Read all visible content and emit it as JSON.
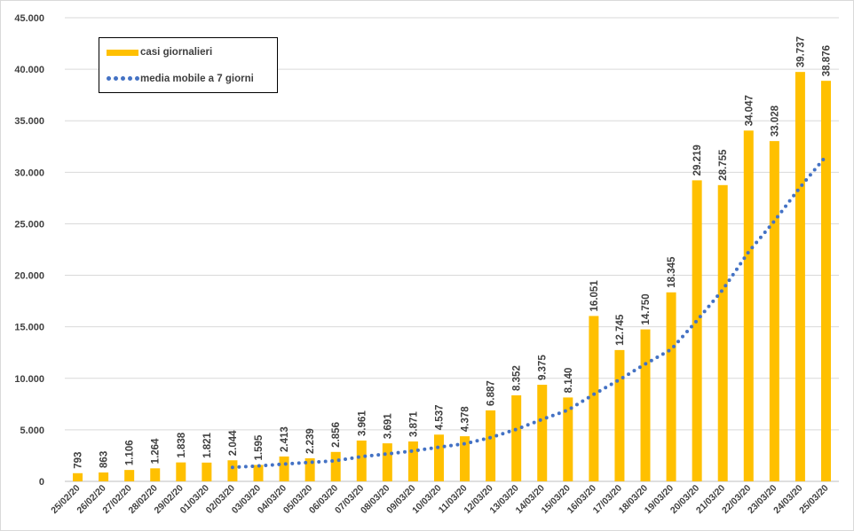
{
  "chart_data": {
    "type": "bar",
    "categories": [
      "25/02/20",
      "26/02/20",
      "27/02/20",
      "28/02/20",
      "29/02/20",
      "01/03/20",
      "02/03/20",
      "03/03/20",
      "04/03/20",
      "05/03/20",
      "06/03/20",
      "07/03/20",
      "08/03/20",
      "09/03/20",
      "10/03/20",
      "11/03/20",
      "12/03/20",
      "13/03/20",
      "14/03/20",
      "15/03/20",
      "16/03/20",
      "17/03/20",
      "18/03/20",
      "19/03/20",
      "20/03/20",
      "21/03/20",
      "22/03/20",
      "23/03/20",
      "24/03/20",
      "25/03/20"
    ],
    "series": [
      {
        "name": "casi giornalieri",
        "type": "bar",
        "color": "#FFC000",
        "values": [
          793,
          863,
          1106,
          1264,
          1838,
          1821,
          2044,
          1595,
          2413,
          2239,
          2856,
          3961,
          3691,
          3871,
          4537,
          4378,
          6887,
          8352,
          9375,
          8140,
          16051,
          12745,
          14750,
          18345,
          29219,
          28755,
          34047,
          33028,
          39737,
          38876
        ],
        "labels": [
          "793",
          "863",
          "1.106",
          "1.264",
          "1.838",
          "1.821",
          "2.044",
          "1.595",
          "2.413",
          "2.239",
          "2.856",
          "3.961",
          "3.691",
          "3.871",
          "4.537",
          "4.378",
          "6.887",
          "8.352",
          "9.375",
          "8.140",
          "16.051",
          "12.745",
          "14.750",
          "18.345",
          "29.219",
          "28.755",
          "34.047",
          "33.028",
          "39.737",
          "38.876"
        ]
      },
      {
        "name": "media mobile a 7 giorni",
        "type": "line",
        "style": "dotted",
        "color": "#4472C4",
        "values": [
          null,
          null,
          null,
          null,
          null,
          null,
          1361,
          1498,
          1676,
          1845,
          2001,
          2398,
          2664,
          2947,
          3324,
          3648,
          4247,
          5054,
          6013,
          6919,
          8453,
          9878,
          11390,
          12809,
          15608,
          18605,
          22274,
          25274,
          28554,
          31570
        ]
      }
    ],
    "ylim": [
      0,
      45000
    ],
    "yticks": [
      {
        "value": 0,
        "label": "0"
      },
      {
        "value": 5000,
        "label": "5.000"
      },
      {
        "value": 10000,
        "label": "10.000"
      },
      {
        "value": 15000,
        "label": "15.000"
      },
      {
        "value": 20000,
        "label": "20.000"
      },
      {
        "value": 25000,
        "label": "25.000"
      },
      {
        "value": 30000,
        "label": "30.000"
      },
      {
        "value": 35000,
        "label": "35.000"
      },
      {
        "value": 40000,
        "label": "40.000"
      },
      {
        "value": 45000,
        "label": "45.000"
      }
    ],
    "title": "",
    "xlabel": "",
    "ylabel": "",
    "grid": true,
    "legend_position": "top-left"
  },
  "legend": {
    "bar_label": "casi giornalieri",
    "line_label": "media mobile a 7 giorni"
  }
}
